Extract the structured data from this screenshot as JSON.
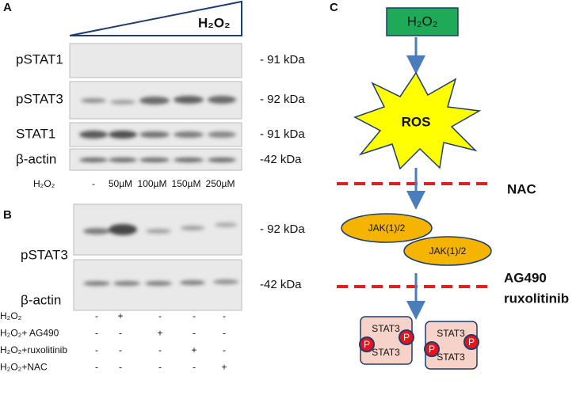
{
  "panel_a": {
    "label": "A",
    "gradient_label": "H₂O₂",
    "rows": [
      {
        "name": "pSTAT1",
        "size": "- 91 kDa"
      },
      {
        "name": "pSTAT3",
        "size": "- 92 kDa"
      },
      {
        "name": "STAT1",
        "size": "- 91 kDa"
      },
      {
        "name": "β-actin",
        "size": "-42 kDa"
      }
    ],
    "lane_header": "H₂O₂",
    "lanes": [
      "-",
      "50µM",
      "100µM",
      "150µM",
      "250µM"
    ]
  },
  "panel_b": {
    "label": "B",
    "rows": [
      {
        "name": "pSTAT3",
        "size": "- 92 kDa"
      },
      {
        "name": "β-actin",
        "size": "-42 kDa"
      }
    ],
    "treatments": [
      {
        "name": "H₂O₂",
        "marks": [
          "-",
          "+",
          "-",
          "-",
          "-"
        ]
      },
      {
        "name": "H₂O₂+ AG490",
        "marks": [
          "-",
          "-",
          "+",
          "-",
          "-"
        ]
      },
      {
        "name": "H₂O₂+ruxolitinib",
        "marks": [
          "-",
          "-",
          "-",
          "+",
          "-"
        ]
      },
      {
        "name": "H₂O₂+NAC",
        "marks": [
          "-",
          "-",
          "-",
          "-",
          "+"
        ]
      }
    ]
  },
  "panel_c": {
    "label": "C",
    "source": "H₂O₂",
    "ros": "ROS",
    "inhibitor_1": "NAC",
    "jak": [
      "JAK(1)/2",
      "JAK(1)/2"
    ],
    "inhibitor_2": [
      "AG490",
      "ruxolitinib"
    ],
    "stat_complexes": [
      {
        "top": "STAT3",
        "bottom": "STAT3",
        "p": [
          "P",
          "P"
        ]
      },
      {
        "top": "STAT3",
        "bottom": "STAT3",
        "p": [
          "P",
          "P"
        ]
      }
    ]
  }
}
